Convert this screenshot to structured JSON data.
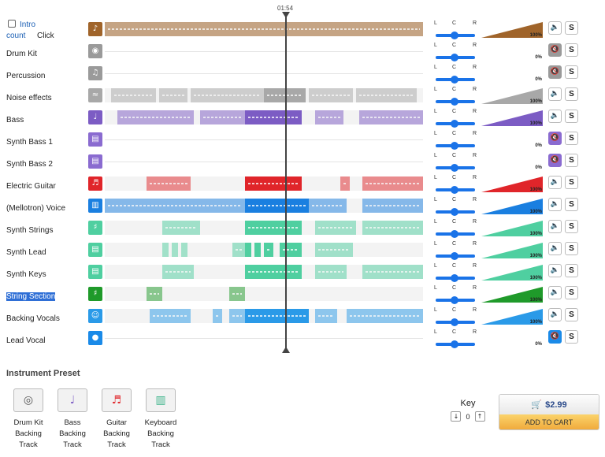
{
  "playhead": {
    "time": "01:54"
  },
  "intro": {
    "checkbox": "Intro",
    "count": "count",
    "click": "Click"
  },
  "pan": {
    "left": "L",
    "center": "C",
    "right": "R"
  },
  "colors": {
    "accent": "#1a73e8",
    "cart_button": "#f3b23f",
    "price_text": "#2a4a8a"
  },
  "tracks": [
    {
      "name": "Intro count Click",
      "icon": "metronome-icon",
      "color": "#a0642a",
      "volume": "100%",
      "muted": false,
      "segments": [
        [
          0,
          1
        ]
      ]
    },
    {
      "name": "Drum Kit",
      "icon": "drum-icon",
      "color": "#9a9a9a",
      "volume": "0%",
      "muted": true,
      "segments": []
    },
    {
      "name": "Percussion",
      "icon": "percussion-icon",
      "color": "#9a9a9a",
      "volume": "0%",
      "muted": true,
      "segments": []
    },
    {
      "name": "Noise effects",
      "icon": "fx-icon",
      "color": "#a8a8a8",
      "volume": "100%",
      "muted": false,
      "segments": [
        [
          0.02,
          0.16
        ],
        [
          0.17,
          0.26
        ],
        [
          0.27,
          0.5
        ],
        [
          0.5,
          0.63
        ],
        [
          0.64,
          0.78
        ],
        [
          0.79,
          0.98
        ]
      ]
    },
    {
      "name": "Bass",
      "icon": "bass-guitar-icon",
      "color": "#7c5cc4",
      "volume": "100%",
      "muted": false,
      "segments": [
        [
          0.04,
          0.28
        ],
        [
          0.3,
          0.44
        ],
        [
          0.44,
          0.62
        ],
        [
          0.66,
          0.75
        ],
        [
          0.8,
          1
        ]
      ]
    },
    {
      "name": "Synth Bass 1",
      "icon": "synth-icon",
      "color": "#8a6bd0",
      "volume": "0%",
      "muted": true,
      "segments": []
    },
    {
      "name": "Synth Bass 2",
      "icon": "synth-icon",
      "color": "#8a6bd0",
      "volume": "0%",
      "muted": true,
      "segments": []
    },
    {
      "name": "Electric Guitar",
      "icon": "electric-guitar-icon",
      "color": "#e0252a",
      "volume": "100%",
      "muted": false,
      "segments": [
        [
          0.13,
          0.27
        ],
        [
          0.44,
          0.62
        ],
        [
          0.74,
          0.77
        ],
        [
          0.81,
          1
        ]
      ]
    },
    {
      "name": "(Mellotron) Voice",
      "icon": "keyboard-icon",
      "color": "#1a7fe0",
      "volume": "100%",
      "muted": false,
      "segments": [
        [
          0,
          0.44
        ],
        [
          0.44,
          0.64
        ],
        [
          0.64,
          0.76
        ],
        [
          0.81,
          1
        ]
      ]
    },
    {
      "name": "Synth Strings",
      "icon": "strings-icon",
      "color": "#4fcfa0",
      "volume": "100%",
      "muted": false,
      "segments": [
        [
          0.18,
          0.3
        ],
        [
          0.44,
          0.62
        ],
        [
          0.66,
          0.79
        ],
        [
          0.81,
          1
        ]
      ]
    },
    {
      "name": "Synth Lead",
      "icon": "synth-icon",
      "color": "#4fcfa0",
      "volume": "100%",
      "muted": false,
      "segments": [
        [
          0.18,
          0.2
        ],
        [
          0.21,
          0.23
        ],
        [
          0.24,
          0.26
        ],
        [
          0.4,
          0.44
        ],
        [
          0.44,
          0.46
        ],
        [
          0.47,
          0.49
        ],
        [
          0.5,
          0.53
        ],
        [
          0.55,
          0.62
        ],
        [
          0.66,
          0.78
        ]
      ]
    },
    {
      "name": "Synth Keys",
      "icon": "synth-icon",
      "color": "#4fcfa0",
      "volume": "100%",
      "muted": false,
      "segments": [
        [
          0.18,
          0.28
        ],
        [
          0.44,
          0.62
        ],
        [
          0.66,
          0.76
        ],
        [
          0.81,
          1
        ]
      ]
    },
    {
      "name": "String Section",
      "icon": "string-section-icon",
      "color": "#1f9a2a",
      "volume": "100%",
      "muted": false,
      "segments": [
        [
          0.13,
          0.18
        ],
        [
          0.39,
          0.44
        ]
      ]
    },
    {
      "name": "Backing Vocals",
      "icon": "vocals-icon",
      "color": "#2a9ae8",
      "volume": "100%",
      "muted": false,
      "segments": [
        [
          0.14,
          0.27
        ],
        [
          0.34,
          0.37
        ],
        [
          0.39,
          0.44
        ],
        [
          0.44,
          0.64
        ],
        [
          0.66,
          0.73
        ],
        [
          0.76,
          1
        ]
      ]
    },
    {
      "name": "Lead Vocal",
      "icon": "microphone-icon",
      "color": "#1a8ae8",
      "volume": "0%",
      "muted": true,
      "segments": []
    }
  ],
  "presets": {
    "title": "Instrument Preset",
    "items": [
      {
        "label": "Drum Kit Backing Track",
        "icon": "drum-kit-icon"
      },
      {
        "label": "Bass Backing Track",
        "icon": "bass-guitar-icon"
      },
      {
        "label": "Guitar Backing Track",
        "icon": "electric-guitar-icon"
      },
      {
        "label": "Keyboard Backing Track",
        "icon": "keyboard-icon"
      }
    ]
  },
  "key": {
    "label": "Key",
    "value": "0"
  },
  "cart": {
    "price": "$2.99",
    "button": "ADD TO CART"
  }
}
